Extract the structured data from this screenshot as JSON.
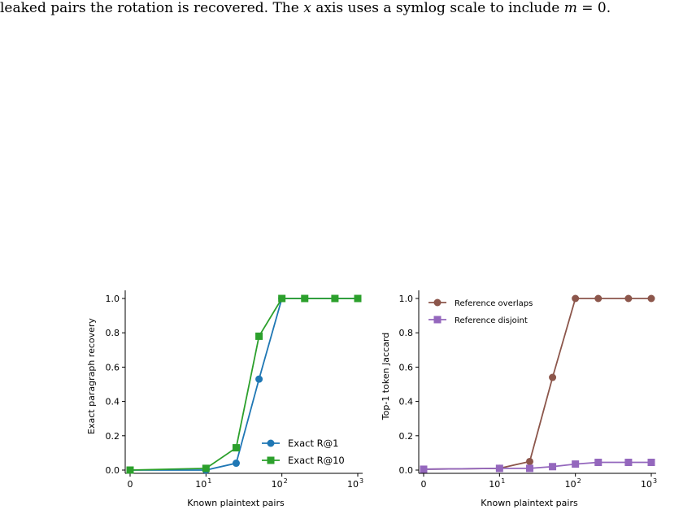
{
  "caption": {
    "part1": "leaked pairs the rotation is recovered. The ",
    "var_x": "x",
    "part2": " axis uses a symlog scale to include ",
    "var_m": "m",
    "part3": " = 0."
  },
  "chart_data": [
    {
      "type": "line",
      "xscale": "symlog",
      "xlabel": "Known plaintext pairs",
      "ylabel": "Exact paragraph recovery",
      "xlim": [
        0,
        1000
      ],
      "ylim": [
        0,
        1.0
      ],
      "x_ticks": [
        {
          "value": 0,
          "base": "0",
          "exp": ""
        },
        {
          "value": 10,
          "base": "10",
          "exp": "1"
        },
        {
          "value": 100,
          "base": "10",
          "exp": "2"
        },
        {
          "value": 1000,
          "base": "10",
          "exp": "3"
        }
      ],
      "y_ticks": [
        "0.0",
        "0.2",
        "0.4",
        "0.6",
        "0.8",
        "1.0"
      ],
      "legend_position": "lower-right",
      "grid": false,
      "series": [
        {
          "name": "Exact R@1",
          "color": "#1f77b4",
          "marker": "circle",
          "x": [
            0,
            10,
            25,
            50,
            100,
            200,
            500,
            1000
          ],
          "y": [
            0.0,
            0.0,
            0.04,
            0.53,
            1.0,
            1.0,
            1.0,
            1.0
          ]
        },
        {
          "name": "Exact R@10",
          "color": "#2ca02c",
          "marker": "square",
          "x": [
            0,
            10,
            25,
            50,
            100,
            200,
            500,
            1000
          ],
          "y": [
            0.0,
            0.01,
            0.13,
            0.78,
            1.0,
            1.0,
            1.0,
            1.0
          ]
        }
      ]
    },
    {
      "type": "line",
      "xscale": "symlog",
      "xlabel": "Known plaintext pairs",
      "ylabel": "Top-1 token Jaccard",
      "xlim": [
        0,
        1000
      ],
      "ylim": [
        0,
        1.0
      ],
      "x_ticks": [
        {
          "value": 0,
          "base": "0",
          "exp": ""
        },
        {
          "value": 10,
          "base": "10",
          "exp": "1"
        },
        {
          "value": 100,
          "base": "10",
          "exp": "2"
        },
        {
          "value": 1000,
          "base": "10",
          "exp": "3"
        }
      ],
      "y_ticks": [
        "0.0",
        "0.2",
        "0.4",
        "0.6",
        "0.8",
        "1.0"
      ],
      "legend_position": "upper-left",
      "grid": false,
      "series": [
        {
          "name": "Reference overlaps",
          "color": "#8c564b",
          "marker": "circle",
          "x": [
            0,
            10,
            25,
            50,
            100,
            200,
            500,
            1000
          ],
          "y": [
            0.005,
            0.01,
            0.05,
            0.54,
            1.0,
            1.0,
            1.0,
            1.0
          ]
        },
        {
          "name": "Reference disjoint",
          "color": "#9467bd",
          "marker": "square",
          "x": [
            0,
            10,
            25,
            50,
            100,
            200,
            500,
            1000
          ],
          "y": [
            0.005,
            0.01,
            0.01,
            0.02,
            0.035,
            0.045,
            0.045,
            0.045
          ]
        }
      ]
    }
  ]
}
